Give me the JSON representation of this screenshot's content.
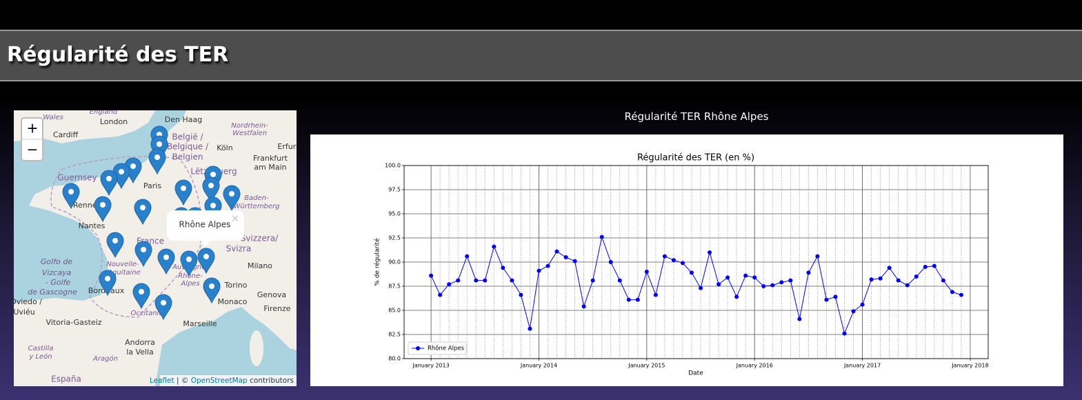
{
  "header": {
    "title": "Régularité des TER"
  },
  "map": {
    "zoom_in": "+",
    "zoom_out": "−",
    "popup": "Rhône Alpes",
    "popup_close": "×",
    "attribution": {
      "leaflet": "Leaflet",
      "separator": " | © ",
      "osm": "OpenStreetMap",
      "suffix": " contributors"
    },
    "labels": [
      "England",
      "Wales",
      "London",
      "Cardiff",
      "Den Haag",
      "Nordrhein-",
      "Westfalen",
      "België /",
      "Belgique /",
      "Belgien",
      "Köln",
      "Erfurt",
      "Frankfurt",
      "am Main",
      "Guernsey",
      "Paris",
      "Lëtzebuerg",
      "Rennes",
      "Nantes",
      "Baden-",
      "Württemberg",
      "France",
      "Svizzera/",
      "Svizra",
      "Milano",
      "Golfo de",
      "Vizcaya",
      "- Golfe",
      "de Gascogne",
      "Nouvelle-",
      "Aquitaine",
      "Auvergne-",
      "Rhône-",
      "Alpes",
      "Bordeaux",
      "Torino",
      "Genova",
      "Monaco",
      "Oviedo /",
      "Uviéu",
      "Firenze",
      "Occitanie",
      "Vitoria-Gasteiz",
      "Marseille",
      "Andorra",
      "la Vella",
      "Castilla",
      "y León",
      "Aragón",
      "España"
    ]
  },
  "chart_heading": "Régularité TER Rhône Alpes",
  "chart_data": {
    "type": "line",
    "title": "Régularité des TER (en %)",
    "x_label": "Date",
    "y_label": "% de régularité",
    "x": [
      "2013-01",
      "2013-02",
      "2013-03",
      "2013-04",
      "2013-05",
      "2013-06",
      "2013-07",
      "2013-08",
      "2013-09",
      "2013-10",
      "2013-11",
      "2013-12",
      "2014-01",
      "2014-02",
      "2014-03",
      "2014-04",
      "2014-05",
      "2014-06",
      "2014-07",
      "2014-08",
      "2014-09",
      "2014-10",
      "2014-11",
      "2014-12",
      "2015-01",
      "2015-02",
      "2015-03",
      "2015-04",
      "2015-05",
      "2015-06",
      "2015-07",
      "2015-08",
      "2015-09",
      "2015-10",
      "2015-11",
      "2015-12",
      "2016-01",
      "2016-02",
      "2016-03",
      "2016-04",
      "2016-05",
      "2016-06",
      "2016-07",
      "2016-08",
      "2016-09",
      "2016-10",
      "2016-11",
      "2016-12",
      "2017-01",
      "2017-02",
      "2017-03",
      "2017-04",
      "2017-05",
      "2017-06",
      "2017-07",
      "2017-08",
      "2017-09",
      "2017-10",
      "2017-11",
      "2017-12"
    ],
    "series": [
      {
        "name": "Rhône Alpes",
        "color": "#0000ff",
        "values": [
          88.6,
          86.6,
          87.7,
          88.1,
          90.6,
          88.1,
          88.1,
          91.6,
          89.4,
          88.1,
          86.6,
          83.1,
          89.1,
          89.6,
          91.1,
          90.5,
          90.1,
          85.4,
          88.1,
          92.6,
          90.0,
          88.1,
          86.1,
          86.1,
          89.0,
          86.6,
          90.6,
          90.2,
          89.9,
          88.9,
          87.3,
          91.0,
          87.7,
          88.4,
          86.4,
          88.6,
          88.4,
          87.5,
          87.6,
          87.9,
          88.1,
          84.1,
          88.9,
          90.6,
          86.1,
          86.4,
          82.6,
          84.9,
          85.6,
          88.2,
          88.3,
          89.4,
          88.1,
          87.6,
          88.5,
          89.5,
          89.6,
          88.1,
          86.9,
          86.6
        ]
      }
    ],
    "xlim": [
      "2012-10",
      "2018-03"
    ],
    "xticks": [
      {
        "value": "2013-01",
        "label": "January 2013"
      },
      {
        "value": "2014-01",
        "label": "January 2014"
      },
      {
        "value": "2015-01",
        "label": "January 2015"
      },
      {
        "value": "2016-01",
        "label": "January 2016"
      },
      {
        "value": "2017-01",
        "label": "January 2017"
      },
      {
        "value": "2018-01",
        "label": "January 2018"
      }
    ],
    "ylim": [
      80,
      100
    ],
    "yticks": [
      {
        "value": 80,
        "label": "80.0"
      },
      82.5,
      {
        "value": 85,
        "label": "85.0"
      },
      87.5,
      {
        "value": 90,
        "label": "90.0"
      },
      92.5,
      {
        "value": 95,
        "label": "95.0"
      },
      97.5,
      {
        "value": 100,
        "label": "100.0"
      }
    ],
    "grid": true,
    "minor_grid": true,
    "legend": "lower left"
  }
}
